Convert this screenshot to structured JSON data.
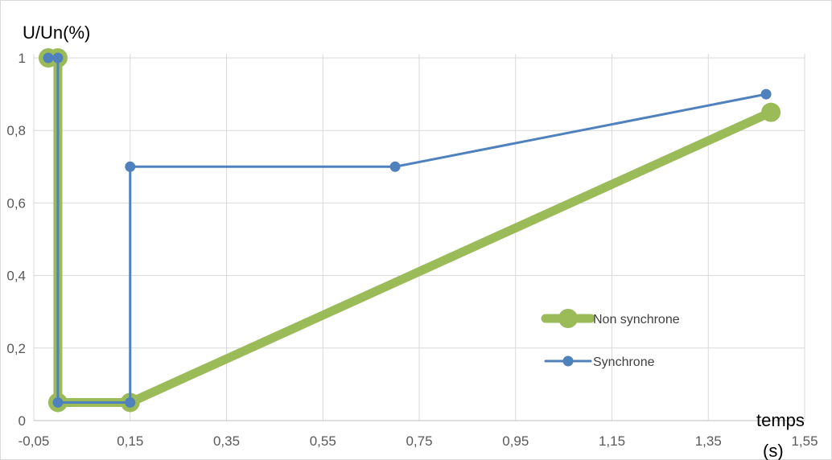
{
  "chart_data": {
    "type": "line",
    "xlabel": "temps (s)",
    "ylabel": "U/Un(%)",
    "xlim": [
      -0.05,
      1.55
    ],
    "ylim": [
      0,
      1
    ],
    "x_ticks": [
      -0.05,
      0.15,
      0.35,
      0.55,
      0.75,
      0.95,
      1.15,
      1.35,
      1.55
    ],
    "y_ticks": [
      0,
      0.2,
      0.4,
      0.6,
      0.8,
      1
    ],
    "x_tick_labels": [
      "-0,05",
      "0,15",
      "0,35",
      "0,55",
      "0,75",
      "0,95",
      "1,15",
      "1,35",
      "1,55"
    ],
    "y_tick_labels": [
      "0",
      "0,2",
      "0,4",
      "0,6",
      "0,8",
      "1"
    ],
    "grid": true,
    "legend_position": "right-inside",
    "series": [
      {
        "name": "Non synchrone",
        "color": "#9BBB59",
        "points": [
          [
            -0.02,
            1
          ],
          [
            0.0,
            1
          ],
          [
            0.0,
            0.05
          ],
          [
            0.15,
            0.05
          ],
          [
            1.48,
            0.85
          ]
        ]
      },
      {
        "name": "Synchrone",
        "color": "#4F81BD",
        "points": [
          [
            -0.02,
            1
          ],
          [
            0.0,
            1
          ],
          [
            0.0,
            0.05
          ],
          [
            0.15,
            0.05
          ],
          [
            0.15,
            0.7
          ],
          [
            0.7,
            0.7
          ],
          [
            1.47,
            0.9
          ]
        ]
      }
    ]
  }
}
